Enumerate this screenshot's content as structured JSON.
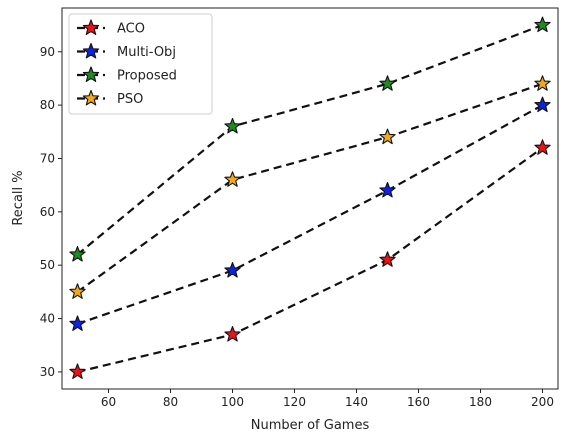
{
  "chart_data": {
    "type": "line",
    "title": "",
    "xlabel": "Number of Games",
    "ylabel": "Recall %",
    "x": [
      50,
      100,
      150,
      200
    ],
    "xlim": [
      45,
      205
    ],
    "ylim": [
      26.8,
      98.2
    ],
    "xticks": [
      60,
      80,
      100,
      120,
      140,
      160,
      180,
      200
    ],
    "yticks": [
      30,
      40,
      50,
      60,
      70,
      80,
      90
    ],
    "grid": false,
    "legend": "top-left",
    "line_style": "dashed black with star markers",
    "series": [
      {
        "name": "ACO",
        "color": "#e8141b",
        "values": [
          30,
          37,
          51,
          72
        ]
      },
      {
        "name": "Multi-Obj",
        "color": "#1022e0",
        "values": [
          39,
          49,
          64,
          80
        ]
      },
      {
        "name": "Proposed",
        "color": "#1f8a1f",
        "values": [
          52,
          76,
          84,
          95
        ]
      },
      {
        "name": "PSO",
        "color": "#f2a81d",
        "values": [
          45,
          66,
          74,
          84
        ]
      }
    ]
  }
}
